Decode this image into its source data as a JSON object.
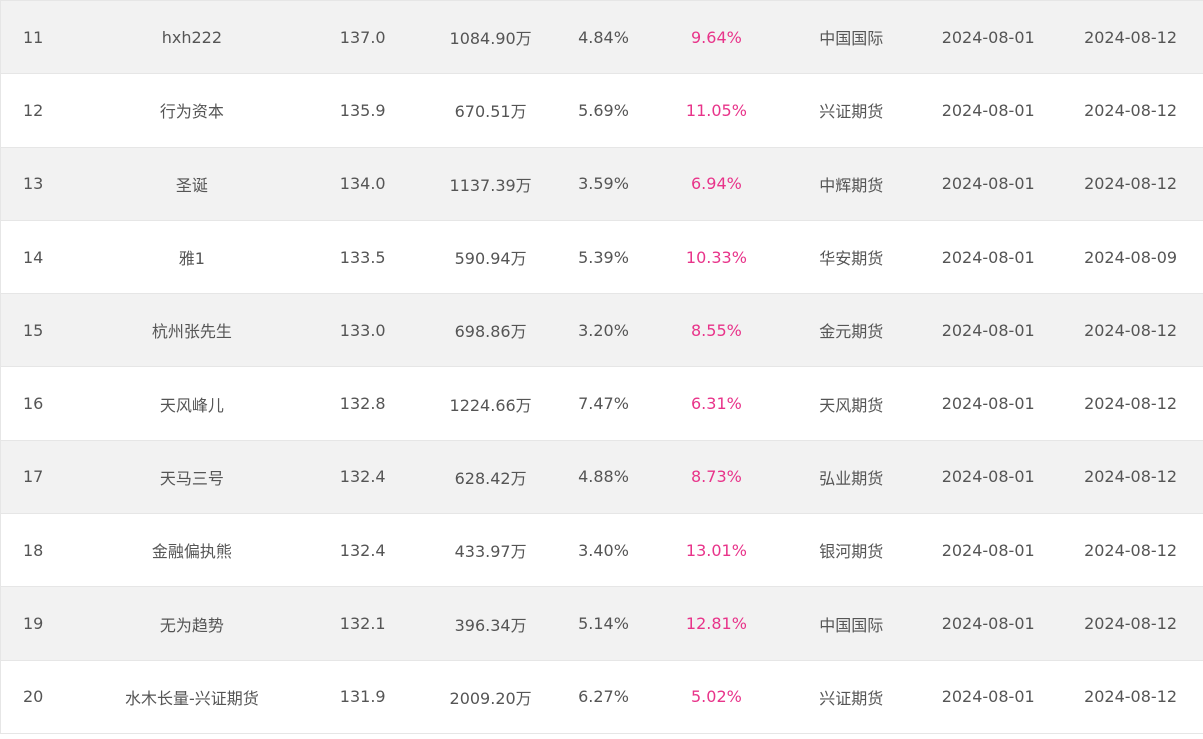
{
  "rows": [
    {
      "rank": "11",
      "name": "hxh222",
      "score": "137.0",
      "equity": "1084.90万",
      "ret": "4.84%",
      "dd": "9.64%",
      "broker": "中国国际",
      "start": "2024-08-01",
      "end": "2024-08-12"
    },
    {
      "rank": "12",
      "name": "行为资本",
      "score": "135.9",
      "equity": "670.51万",
      "ret": "5.69%",
      "dd": "11.05%",
      "broker": "兴证期货",
      "start": "2024-08-01",
      "end": "2024-08-12"
    },
    {
      "rank": "13",
      "name": "圣诞",
      "score": "134.0",
      "equity": "1137.39万",
      "ret": "3.59%",
      "dd": "6.94%",
      "broker": "中辉期货",
      "start": "2024-08-01",
      "end": "2024-08-12"
    },
    {
      "rank": "14",
      "name": "雅1",
      "score": "133.5",
      "equity": "590.94万",
      "ret": "5.39%",
      "dd": "10.33%",
      "broker": "华安期货",
      "start": "2024-08-01",
      "end": "2024-08-09"
    },
    {
      "rank": "15",
      "name": "杭州张先生",
      "score": "133.0",
      "equity": "698.86万",
      "ret": "3.20%",
      "dd": "8.55%",
      "broker": "金元期货",
      "start": "2024-08-01",
      "end": "2024-08-12"
    },
    {
      "rank": "16",
      "name": "天风峰儿",
      "score": "132.8",
      "equity": "1224.66万",
      "ret": "7.47%",
      "dd": "6.31%",
      "broker": "天风期货",
      "start": "2024-08-01",
      "end": "2024-08-12"
    },
    {
      "rank": "17",
      "name": "天马三号",
      "score": "132.4",
      "equity": "628.42万",
      "ret": "4.88%",
      "dd": "8.73%",
      "broker": "弘业期货",
      "start": "2024-08-01",
      "end": "2024-08-12"
    },
    {
      "rank": "18",
      "name": "金融偏执熊",
      "score": "132.4",
      "equity": "433.97万",
      "ret": "3.40%",
      "dd": "13.01%",
      "broker": "银河期货",
      "start": "2024-08-01",
      "end": "2024-08-12"
    },
    {
      "rank": "19",
      "name": "无为趋势",
      "score": "132.1",
      "equity": "396.34万",
      "ret": "5.14%",
      "dd": "12.81%",
      "broker": "中国国际",
      "start": "2024-08-01",
      "end": "2024-08-12"
    },
    {
      "rank": "20",
      "name": "水木长量-兴证期货",
      "score": "131.9",
      "equity": "2009.20万",
      "ret": "6.27%",
      "dd": "5.02%",
      "broker": "兴证期货",
      "start": "2024-08-01",
      "end": "2024-08-12"
    }
  ],
  "colors": {
    "drawdown": "#e8348a",
    "row_alt": "#f2f2f2",
    "text": "#555555"
  }
}
